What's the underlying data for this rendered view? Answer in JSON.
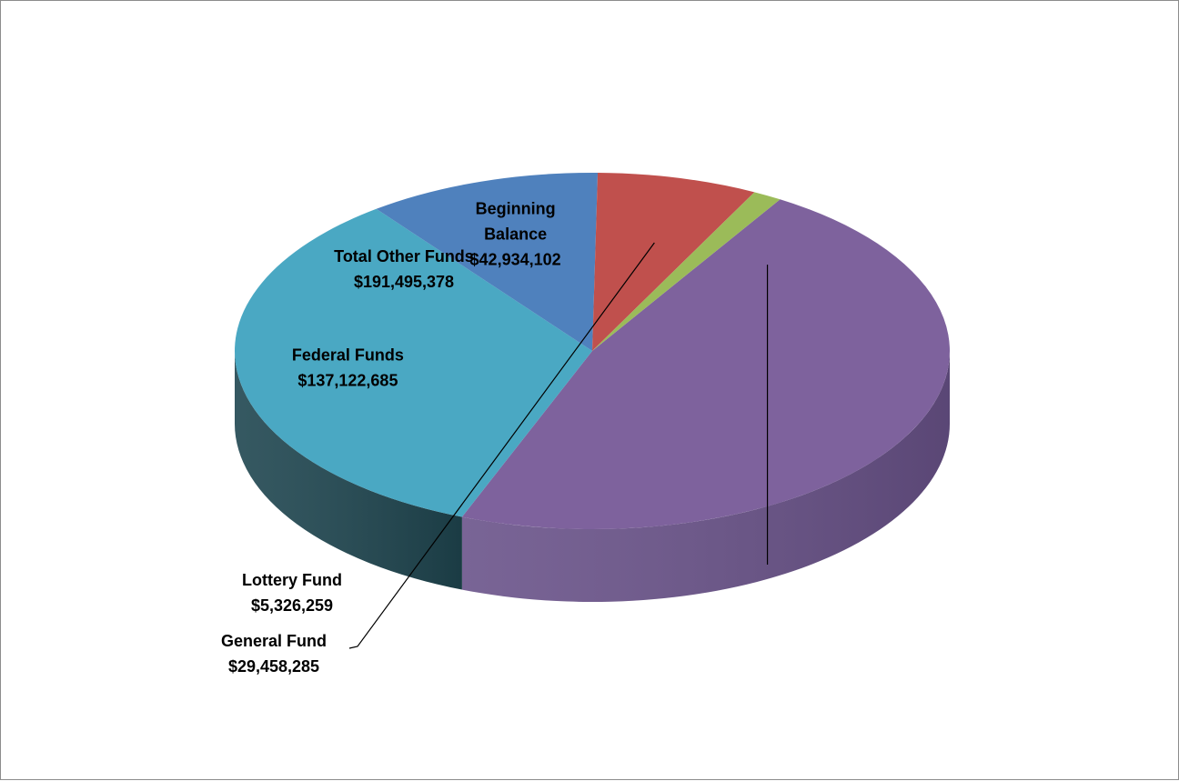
{
  "chart_data": {
    "type": "pie",
    "title": "",
    "legend": "none",
    "categories": [
      "Total Other Funds",
      "Federal Funds",
      "Beginning Balance",
      "General Fund",
      "Lottery Fund"
    ],
    "values": [
      191495378,
      137122685,
      42934102,
      29458285,
      5326259
    ],
    "value_labels": [
      "$191,495,378",
      "$137,122,685",
      "$42,934,102",
      "$29,458,285",
      "$5,326,259"
    ],
    "label_lines": [
      [
        "Total Other Funds"
      ],
      [
        "Federal Funds"
      ],
      [
        "Beginning",
        "Balance"
      ],
      [
        "General Fund"
      ],
      [
        "Lottery Fund"
      ]
    ],
    "colors": [
      "#7e629d",
      "#4aa8c3",
      "#4f81bd",
      "#c0504d",
      "#9bbb59"
    ],
    "side_colors": [
      "#6a538a",
      "#1f4650",
      "#2f4a72",
      "#8e3735",
      "#7e9a44"
    ]
  }
}
